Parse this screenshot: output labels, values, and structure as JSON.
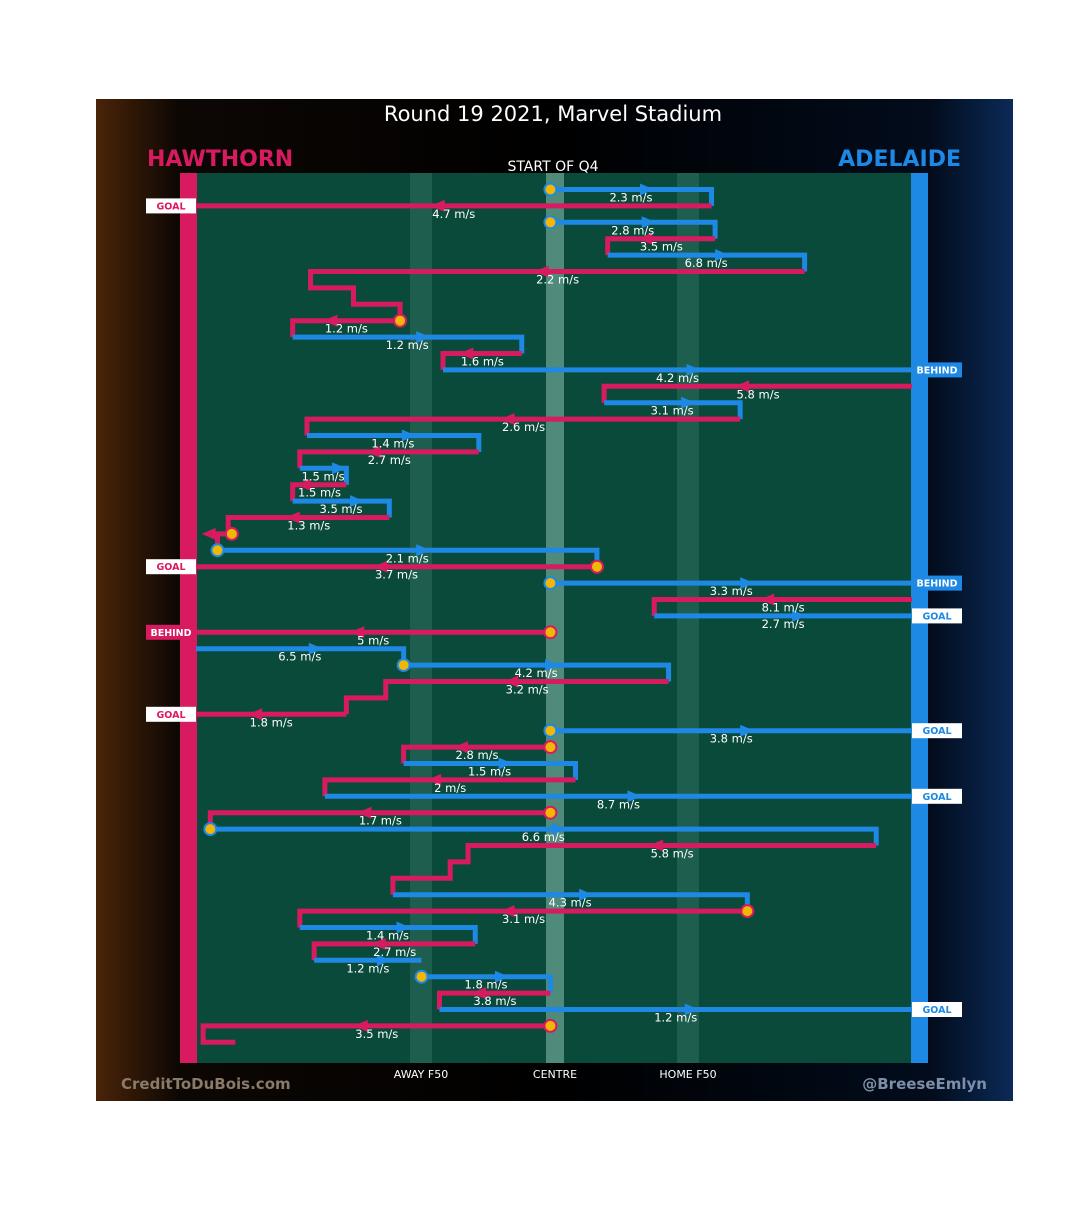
{
  "chart_data": {
    "type": "line",
    "title": "Round 19 2021, Marvel Stadium",
    "subtitle": "START OF Q4",
    "teams": {
      "home": {
        "name": "HAWTHORN",
        "color": "#d81b60"
      },
      "away": {
        "name": "ADELAIDE",
        "color": "#1e88e5"
      }
    },
    "zones": [
      "AWAY F50",
      "CENTRE",
      "HOME F50"
    ],
    "credits": {
      "left": "CreditToDuBois.com",
      "right": "@BreeseEmlyn"
    },
    "speed_unit": "m/s",
    "chains": [
      {
        "team": "away",
        "path": [
          [
            0.495,
            0
          ],
          [
            0.72,
            0
          ],
          [
            0.72,
            1
          ]
        ],
        "speed": 2.3,
        "start": true
      },
      {
        "team": "home",
        "path": [
          [
            0.72,
            1
          ],
          [
            0,
            1
          ]
        ],
        "speed": 4.7,
        "result": "GOAL"
      },
      {
        "team": "away",
        "path": [
          [
            0.495,
            2
          ],
          [
            0.725,
            2
          ],
          [
            0.725,
            3
          ]
        ],
        "speed": 2.8,
        "start": true
      },
      {
        "team": "home",
        "path": [
          [
            0.725,
            3
          ],
          [
            0.575,
            3
          ],
          [
            0.575,
            4
          ]
        ],
        "speed": 3.5
      },
      {
        "team": "away",
        "path": [
          [
            0.575,
            4
          ],
          [
            0.85,
            4
          ],
          [
            0.85,
            5
          ]
        ],
        "speed": 6.8
      },
      {
        "team": "home",
        "path": [
          [
            0.85,
            5
          ],
          [
            0.16,
            5
          ],
          [
            0.16,
            6
          ],
          [
            0.22,
            6
          ],
          [
            0.22,
            7
          ],
          [
            0.285,
            7
          ],
          [
            0.285,
            8
          ]
        ],
        "speed": 2.2
      },
      {
        "team": "home",
        "path": [
          [
            0.285,
            8
          ],
          [
            0.135,
            8
          ],
          [
            0.135,
            9
          ]
        ],
        "speed": 1.2,
        "start": true
      },
      {
        "team": "away",
        "path": [
          [
            0.135,
            9
          ],
          [
            0.455,
            9
          ],
          [
            0.455,
            10
          ]
        ],
        "speed": 1.2
      },
      {
        "team": "home",
        "path": [
          [
            0.455,
            10
          ],
          [
            0.345,
            10
          ],
          [
            0.345,
            11
          ]
        ],
        "speed": 1.6
      },
      {
        "team": "away",
        "path": [
          [
            0.345,
            11
          ],
          [
            1,
            11
          ]
        ],
        "speed": 4.2,
        "result": "BEHIND"
      },
      {
        "team": "home",
        "path": [
          [
            1,
            12
          ],
          [
            0.57,
            12
          ],
          [
            0.57,
            13
          ]
        ],
        "speed": 5.8
      },
      {
        "team": "away",
        "path": [
          [
            0.57,
            13
          ],
          [
            0.76,
            13
          ],
          [
            0.76,
            14
          ]
        ],
        "speed": 3.1
      },
      {
        "team": "home",
        "path": [
          [
            0.76,
            14
          ],
          [
            0.155,
            14
          ],
          [
            0.155,
            15
          ]
        ],
        "speed": 2.6
      },
      {
        "team": "away",
        "path": [
          [
            0.155,
            15
          ],
          [
            0.395,
            15
          ],
          [
            0.395,
            16
          ]
        ],
        "speed": 1.4
      },
      {
        "team": "home",
        "path": [
          [
            0.395,
            16
          ],
          [
            0.145,
            16
          ],
          [
            0.145,
            17
          ]
        ],
        "speed": 2.7
      },
      {
        "team": "away",
        "path": [
          [
            0.145,
            17
          ],
          [
            0.21,
            17
          ],
          [
            0.21,
            18
          ]
        ],
        "speed": 1.5
      },
      {
        "team": "home",
        "path": [
          [
            0.21,
            18
          ],
          [
            0.135,
            18
          ],
          [
            0.135,
            19
          ]
        ],
        "speed": 1.5
      },
      {
        "team": "away",
        "path": [
          [
            0.135,
            19
          ],
          [
            0.27,
            19
          ],
          [
            0.27,
            20
          ]
        ],
        "speed": 3.5
      },
      {
        "team": "home",
        "path": [
          [
            0.27,
            20
          ],
          [
            0.045,
            20
          ],
          [
            0.045,
            21
          ]
        ],
        "speed": 1.3
      },
      {
        "team": "home",
        "path": [
          [
            0.05,
            21
          ],
          [
            0.03,
            21
          ],
          [
            0.03,
            22
          ]
        ],
        "speed": null,
        "start": true
      },
      {
        "team": "away",
        "path": [
          [
            0.03,
            22
          ],
          [
            0.56,
            22
          ],
          [
            0.56,
            23
          ]
        ],
        "speed": 2.1,
        "start": true
      },
      {
        "team": "home",
        "path": [
          [
            0.56,
            23
          ],
          [
            0,
            23
          ]
        ],
        "speed": 3.7,
        "start": true,
        "result": "GOAL"
      },
      {
        "team": "away",
        "path": [
          [
            0.495,
            24
          ],
          [
            1,
            24
          ]
        ],
        "speed": 3.3,
        "start": true,
        "result": "BEHIND"
      },
      {
        "team": "home",
        "path": [
          [
            1,
            25
          ],
          [
            0.64,
            25
          ],
          [
            0.64,
            26
          ]
        ],
        "speed": 8.1
      },
      {
        "team": "away",
        "path": [
          [
            0.64,
            26
          ],
          [
            1,
            26
          ]
        ],
        "speed": 2.7,
        "result": "GOAL"
      },
      {
        "team": "home",
        "path": [
          [
            0.495,
            27
          ],
          [
            0,
            27
          ]
        ],
        "speed": 5,
        "start": true,
        "result": "BEHIND"
      },
      {
        "team": "away",
        "path": [
          [
            0,
            28
          ],
          [
            0.29,
            28
          ],
          [
            0.29,
            29
          ]
        ],
        "speed": 6.5
      },
      {
        "team": "away",
        "path": [
          [
            0.29,
            29
          ],
          [
            0.66,
            29
          ],
          [
            0.66,
            30
          ]
        ],
        "speed": 4.2,
        "start": true
      },
      {
        "team": "home",
        "path": [
          [
            0.66,
            30
          ],
          [
            0.265,
            30
          ],
          [
            0.265,
            31
          ],
          [
            0.21,
            31
          ],
          [
            0.21,
            32
          ]
        ],
        "speed": 3.2
      },
      {
        "team": "home",
        "path": [
          [
            0.21,
            32
          ],
          [
            0,
            32
          ]
        ],
        "speed": 1.8,
        "result": "GOAL"
      },
      {
        "team": "away",
        "path": [
          [
            0.495,
            33
          ],
          [
            1,
            33
          ]
        ],
        "speed": 3.8,
        "start": true,
        "result": "GOAL"
      },
      {
        "team": "home",
        "path": [
          [
            0.495,
            34
          ],
          [
            0.29,
            34
          ],
          [
            0.29,
            35
          ]
        ],
        "speed": 2.8,
        "start": true
      },
      {
        "team": "away",
        "path": [
          [
            0.29,
            35
          ],
          [
            0.53,
            35
          ],
          [
            0.53,
            36
          ]
        ],
        "speed": 1.5
      },
      {
        "team": "home",
        "path": [
          [
            0.53,
            36
          ],
          [
            0.18,
            36
          ],
          [
            0.18,
            37
          ]
        ],
        "speed": 2
      },
      {
        "team": "away",
        "path": [
          [
            0.18,
            37
          ],
          [
            1,
            37
          ]
        ],
        "speed": 8.7,
        "result": "GOAL"
      },
      {
        "team": "home",
        "path": [
          [
            0.495,
            38
          ],
          [
            0.02,
            38
          ],
          [
            0.02,
            39
          ]
        ],
        "speed": 1.7,
        "start": true
      },
      {
        "team": "away",
        "path": [
          [
            0.02,
            39
          ],
          [
            0.95,
            39
          ],
          [
            0.95,
            40
          ]
        ],
        "speed": 6.6,
        "start": true
      },
      {
        "team": "home",
        "path": [
          [
            0.95,
            40
          ],
          [
            0.38,
            40
          ],
          [
            0.38,
            41
          ],
          [
            0.355,
            41
          ],
          [
            0.355,
            42
          ],
          [
            0.275,
            42
          ],
          [
            0.275,
            43
          ]
        ],
        "speed": 5.8
      },
      {
        "team": "away",
        "path": [
          [
            0.275,
            43
          ],
          [
            0.77,
            43
          ],
          [
            0.77,
            44
          ]
        ],
        "speed": 4.3
      },
      {
        "team": "home",
        "path": [
          [
            0.77,
            44
          ],
          [
            0.145,
            44
          ],
          [
            0.145,
            45
          ]
        ],
        "speed": 3.1,
        "start": true
      },
      {
        "team": "away",
        "path": [
          [
            0.145,
            45
          ],
          [
            0.39,
            45
          ],
          [
            0.39,
            46
          ]
        ],
        "speed": 1.4
      },
      {
        "team": "home",
        "path": [
          [
            0.39,
            46
          ],
          [
            0.165,
            46
          ],
          [
            0.165,
            47
          ]
        ],
        "speed": 2.7
      },
      {
        "team": "away",
        "path": [
          [
            0.165,
            47
          ],
          [
            0.315,
            47
          ]
        ],
        "speed": 1.2
      },
      {
        "team": "away",
        "path": [
          [
            0.315,
            48
          ],
          [
            0.495,
            48
          ],
          [
            0.495,
            49
          ]
        ],
        "speed": 1.8,
        "start": true
      },
      {
        "team": "home",
        "path": [
          [
            0.495,
            49
          ],
          [
            0.34,
            49
          ],
          [
            0.34,
            50
          ]
        ],
        "speed": 3.8
      },
      {
        "team": "away",
        "path": [
          [
            0.34,
            50
          ],
          [
            1,
            50
          ]
        ],
        "speed": 1.2,
        "result": "GOAL"
      },
      {
        "team": "home",
        "path": [
          [
            0.495,
            51
          ],
          [
            0.01,
            51
          ],
          [
            0.01,
            52
          ],
          [
            0.055,
            52
          ]
        ],
        "speed": 3.5,
        "start": true
      }
    ]
  }
}
